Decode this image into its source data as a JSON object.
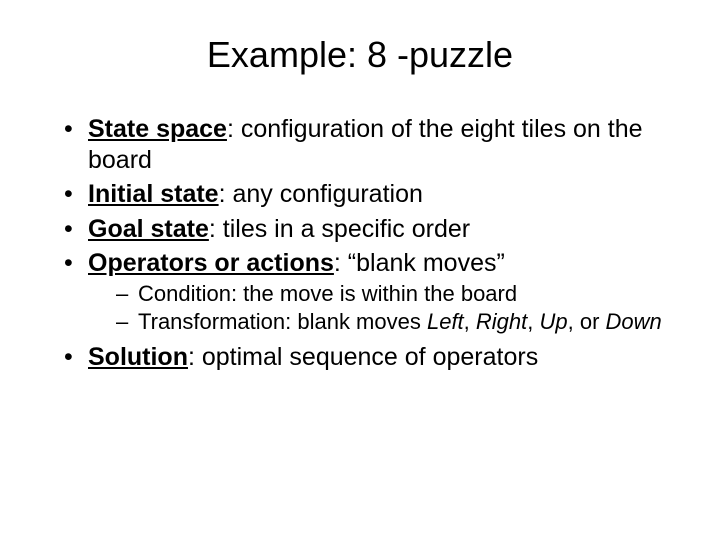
{
  "slide": {
    "title": "Example: 8 -puzzle",
    "background_color": "#ffffff",
    "text_color": "#000000",
    "title_fontsize": 36,
    "body_fontsize": 25,
    "sub_fontsize": 22,
    "font_family": "Arial",
    "bullets": [
      {
        "label": "State space",
        "text": ": configuration of the eight tiles on the board"
      },
      {
        "label": "Initial state",
        "text": ": any configuration"
      },
      {
        "label": "Goal state",
        "text": ": tiles in a specific order"
      },
      {
        "label": "Operators or actions",
        "text": ": “blank moves”",
        "subs": [
          {
            "prefix": "Condition: the move is within the board"
          },
          {
            "prefix": "Transformation: blank moves ",
            "italic1": "Left",
            "mid1": ", ",
            "italic2": "Right",
            "mid2": ", ",
            "italic3": "Up",
            "mid3": ", or ",
            "italic4": "Down"
          }
        ]
      },
      {
        "label": "Solution",
        "text": ": optimal sequence of operators"
      }
    ]
  }
}
